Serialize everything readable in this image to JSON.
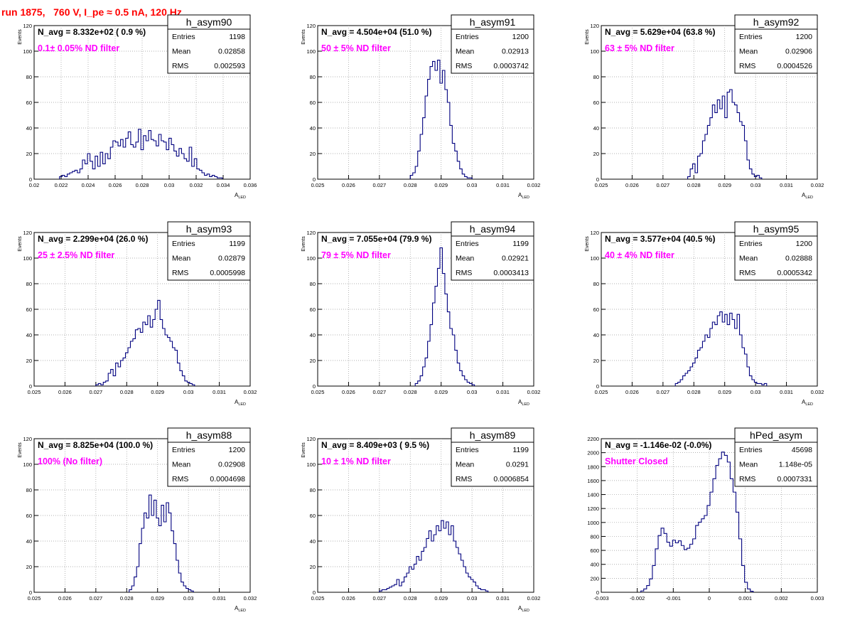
{
  "run_title": "run 1875,   760 V, I_pe ≈ 0.5 nA, 120 Hz",
  "colors": {
    "title": "#ff0000",
    "annotation": "#ff00ff",
    "histogram": "#00007f",
    "grid": "#999999"
  },
  "chart_data": [
    {
      "type": "histogram",
      "name": "h_asym90",
      "ylabel": "Events",
      "xlabel": "A_LED",
      "navg": "N_avg = 8.332e+02 ( 0.9 %)",
      "annotation": "0.1± 0.05% ND filter",
      "stats": {
        "Entries": "1198",
        "Mean": "0.02858",
        "RMS": "0.002593"
      },
      "xlim": [
        0.02,
        0.037
      ],
      "ylim": [
        0,
        120
      ],
      "xticks": [
        "0.02",
        "0.022",
        "0.024",
        "0.026",
        "0.028",
        "0.03",
        "0.032",
        "0.034",
        "0.036"
      ],
      "yticks": [
        "0",
        "20",
        "40",
        "60",
        "80",
        "100",
        "120"
      ],
      "x": [
        0.022,
        0.0222,
        0.0224,
        0.0226,
        0.0228,
        0.023,
        0.0232,
        0.0234,
        0.0236,
        0.0238,
        0.024,
        0.0242,
        0.0244,
        0.0246,
        0.0248,
        0.025,
        0.0252,
        0.0254,
        0.0256,
        0.0258,
        0.026,
        0.0262,
        0.0264,
        0.0266,
        0.0268,
        0.027,
        0.0272,
        0.0274,
        0.0276,
        0.0278,
        0.028,
        0.0282,
        0.0284,
        0.0286,
        0.0288,
        0.029,
        0.0292,
        0.0294,
        0.0296,
        0.0298,
        0.03,
        0.0302,
        0.0304,
        0.0306,
        0.0308,
        0.031,
        0.0312,
        0.0314,
        0.0316,
        0.0318,
        0.032,
        0.0322,
        0.0324,
        0.0326,
        0.0328,
        0.033,
        0.0332,
        0.0334,
        0.0336,
        0.0338,
        0.034,
        0.0342,
        0.0344,
        0.0346
      ],
      "values": [
        2,
        3,
        2,
        4,
        5,
        6,
        7,
        5,
        8,
        15,
        12,
        20,
        14,
        8,
        18,
        10,
        21,
        12,
        20,
        16,
        25,
        30,
        29,
        26,
        31,
        25,
        32,
        37,
        27,
        25,
        29,
        39,
        23,
        34,
        30,
        38,
        31,
        30,
        26,
        35,
        30,
        29,
        23,
        32,
        27,
        22,
        18,
        24,
        20,
        16,
        14,
        25,
        10,
        16,
        8,
        7,
        5,
        3,
        4,
        2,
        3,
        2,
        1,
        1
      ]
    },
    {
      "type": "histogram",
      "name": "h_asym91",
      "ylabel": "Events",
      "xlabel": "A_LED",
      "navg": "N_avg = 4.504e+04 (51.0 %)",
      "annotation": "50 ± 5% ND filter",
      "stats": {
        "Entries": "1200",
        "Mean": "0.02913",
        "RMS": "0.0003742"
      },
      "xlim": [
        0.025,
        0.032
      ],
      "ylim": [
        0,
        120
      ],
      "xticks": [
        "0.025",
        "0.026",
        "0.027",
        "0.028",
        "0.029",
        "0.03",
        "0.031",
        "0.032"
      ],
      "yticks": [
        "0",
        "20",
        "40",
        "60",
        "80",
        "100",
        "120"
      ],
      "x": [
        0.028,
        0.02808,
        0.02816,
        0.02824,
        0.02832,
        0.0284,
        0.02848,
        0.02856,
        0.02864,
        0.02872,
        0.0288,
        0.02888,
        0.02896,
        0.02904,
        0.02912,
        0.0292,
        0.02928,
        0.02936,
        0.02944,
        0.02952,
        0.0296,
        0.02968,
        0.02976,
        0.02984,
        0.02992
      ],
      "values": [
        3,
        5,
        10,
        22,
        35,
        48,
        65,
        78,
        88,
        92,
        85,
        93,
        75,
        85,
        70,
        60,
        42,
        28,
        22,
        14,
        8,
        4,
        2,
        1,
        1
      ]
    },
    {
      "type": "histogram",
      "name": "h_asym92",
      "ylabel": "Events",
      "xlabel": "A_LED",
      "navg": "N_avg = 5.629e+04 (63.8 %)",
      "annotation": "63 ± 5% ND filter",
      "stats": {
        "Entries": "1200",
        "Mean": "0.02906",
        "RMS": "0.0004526"
      },
      "xlim": [
        0.025,
        0.032
      ],
      "ylim": [
        0,
        120
      ],
      "xticks": [
        "0.025",
        "0.026",
        "0.027",
        "0.028",
        "0.029",
        "0.03",
        "0.031",
        "0.032"
      ],
      "yticks": [
        "0",
        "20",
        "40",
        "60",
        "80",
        "100",
        "120"
      ],
      "x": [
        0.0278,
        0.02788,
        0.02796,
        0.02804,
        0.02812,
        0.0282,
        0.02828,
        0.02836,
        0.02844,
        0.02852,
        0.0286,
        0.02868,
        0.02876,
        0.02884,
        0.02892,
        0.029,
        0.02908,
        0.02916,
        0.02924,
        0.02932,
        0.0294,
        0.02948,
        0.02956,
        0.02964,
        0.02972,
        0.0298,
        0.02988,
        0.02996,
        0.03004,
        0.03012
      ],
      "values": [
        2,
        8,
        12,
        5,
        18,
        20,
        30,
        35,
        42,
        48,
        58,
        52,
        62,
        55,
        65,
        48,
        68,
        70,
        60,
        58,
        52,
        45,
        42,
        30,
        15,
        8,
        4,
        2,
        3,
        1
      ]
    },
    {
      "type": "histogram",
      "name": "h_asym93",
      "ylabel": "Events",
      "xlabel": "A_LED",
      "navg": "N_avg = 2.299e+04 (26.0 %)",
      "annotation": "25 ± 2.5% ND filter",
      "stats": {
        "Entries": "1199",
        "Mean": "0.02879",
        "RMS": "0.0005998"
      },
      "xlim": [
        0.025,
        0.032
      ],
      "ylim": [
        0,
        120
      ],
      "xticks": [
        "0.025",
        "0.026",
        "0.027",
        "0.028",
        "0.029",
        "0.03",
        "0.031",
        "0.032"
      ],
      "yticks": [
        "0",
        "20",
        "40",
        "60",
        "80",
        "100",
        "120"
      ],
      "x": [
        0.027,
        0.02708,
        0.02716,
        0.02724,
        0.02732,
        0.0274,
        0.02748,
        0.02756,
        0.02764,
        0.02772,
        0.0278,
        0.02788,
        0.02796,
        0.02804,
        0.02812,
        0.0282,
        0.02828,
        0.02836,
        0.02844,
        0.02852,
        0.0286,
        0.02868,
        0.02876,
        0.02884,
        0.02892,
        0.029,
        0.02908,
        0.02916,
        0.02924,
        0.02932,
        0.0294,
        0.02948,
        0.02956,
        0.02964,
        0.02972,
        0.0298,
        0.02988,
        0.02996,
        0.03004,
        0.03012
      ],
      "values": [
        1,
        2,
        1,
        3,
        4,
        10,
        13,
        8,
        18,
        15,
        20,
        22,
        26,
        30,
        35,
        37,
        44,
        45,
        42,
        50,
        48,
        55,
        46,
        52,
        60,
        67,
        52,
        45,
        40,
        38,
        35,
        30,
        28,
        18,
        12,
        8,
        4,
        3,
        2,
        1
      ]
    },
    {
      "type": "histogram",
      "name": "h_asym94",
      "ylabel": "Events",
      "xlabel": "A_LED",
      "navg": "N_avg = 7.055e+04 (79.9 %)",
      "annotation": "79 ± 5% ND filter",
      "stats": {
        "Entries": "1199",
        "Mean": "0.02921",
        "RMS": "0.0003413"
      },
      "xlim": [
        0.025,
        0.032
      ],
      "ylim": [
        0,
        120
      ],
      "xticks": [
        "0.025",
        "0.026",
        "0.027",
        "0.028",
        "0.029",
        "0.03",
        "0.031",
        "0.032"
      ],
      "yticks": [
        "0",
        "20",
        "40",
        "60",
        "80",
        "100",
        "120"
      ],
      "x": [
        0.02816,
        0.02824,
        0.02832,
        0.0284,
        0.02848,
        0.02856,
        0.02864,
        0.02872,
        0.0288,
        0.02888,
        0.02896,
        0.02904,
        0.02912,
        0.0292,
        0.02928,
        0.02936,
        0.02944,
        0.02952,
        0.0296,
        0.02968,
        0.02976,
        0.02984,
        0.02992,
        0.03
      ],
      "values": [
        2,
        4,
        8,
        15,
        22,
        35,
        48,
        65,
        78,
        92,
        108,
        88,
        72,
        58,
        45,
        40,
        28,
        18,
        12,
        8,
        5,
        3,
        2,
        1
      ]
    },
    {
      "type": "histogram",
      "name": "h_asym95",
      "ylabel": "Events",
      "xlabel": "A_LED",
      "navg": "N_avg = 3.577e+04 (40.5 %)",
      "annotation": "40 ± 4% ND filter",
      "stats": {
        "Entries": "1200",
        "Mean": "0.02888",
        "RMS": "0.0005342"
      },
      "xlim": [
        0.025,
        0.032
      ],
      "ylim": [
        0,
        120
      ],
      "xticks": [
        "0.025",
        "0.026",
        "0.027",
        "0.028",
        "0.029",
        "0.03",
        "0.031",
        "0.032"
      ],
      "yticks": [
        "0",
        "20",
        "40",
        "60",
        "80",
        "100",
        "120"
      ],
      "x": [
        0.0274,
        0.02748,
        0.02756,
        0.02764,
        0.02772,
        0.0278,
        0.02788,
        0.02796,
        0.02804,
        0.02812,
        0.0282,
        0.02828,
        0.02836,
        0.02844,
        0.02852,
        0.0286,
        0.02868,
        0.02876,
        0.02884,
        0.02892,
        0.029,
        0.02908,
        0.02916,
        0.02924,
        0.02932,
        0.0294,
        0.02948,
        0.02956,
        0.02964,
        0.02972,
        0.0298,
        0.02988,
        0.02996,
        0.03004,
        0.03012,
        0.0302,
        0.03028
      ],
      "values": [
        2,
        3,
        5,
        8,
        10,
        12,
        15,
        18,
        22,
        28,
        30,
        35,
        40,
        38,
        45,
        50,
        48,
        55,
        58,
        50,
        56,
        48,
        57,
        52,
        45,
        56,
        40,
        30,
        25,
        15,
        8,
        5,
        3,
        2,
        2,
        1,
        2
      ]
    },
    {
      "type": "histogram",
      "name": "h_asym88",
      "ylabel": "Events",
      "xlabel": "A_LED",
      "navg": "N_avg = 8.825e+04 (100.0 %)",
      "annotation": "100% (No filter)",
      "stats": {
        "Entries": "1200",
        "Mean": "0.02908",
        "RMS": "0.0004698"
      },
      "xlim": [
        0.025,
        0.032
      ],
      "ylim": [
        0,
        120
      ],
      "xticks": [
        "0.025",
        "0.026",
        "0.027",
        "0.028",
        "0.029",
        "0.03",
        "0.031",
        "0.032"
      ],
      "yticks": [
        "0",
        "20",
        "40",
        "60",
        "80",
        "100",
        "120"
      ],
      "x": [
        0.02808,
        0.02816,
        0.02824,
        0.02832,
        0.0284,
        0.02848,
        0.02856,
        0.02864,
        0.02872,
        0.0288,
        0.02888,
        0.02896,
        0.02904,
        0.02912,
        0.0292,
        0.02928,
        0.02936,
        0.02944,
        0.02952,
        0.0296,
        0.02968,
        0.02976,
        0.02984,
        0.02992,
        0.03,
        0.03008
      ],
      "values": [
        2,
        5,
        12,
        20,
        38,
        50,
        62,
        58,
        76,
        60,
        72,
        58,
        52,
        68,
        55,
        70,
        62,
        48,
        38,
        25,
        15,
        8,
        5,
        3,
        2,
        1
      ]
    },
    {
      "type": "histogram",
      "name": "h_asym89",
      "ylabel": "Events",
      "xlabel": "A_LED",
      "navg": "N_avg = 8.409e+03 ( 9.5 %)",
      "annotation": "10 ± 1% ND filter",
      "stats": {
        "Entries": "1199",
        "Mean": "0.0291",
        "RMS": "0.0006854"
      },
      "xlim": [
        0.025,
        0.032
      ],
      "ylim": [
        0,
        120
      ],
      "xticks": [
        "0.025",
        "0.026",
        "0.027",
        "0.028",
        "0.029",
        "0.03",
        "0.031",
        "0.032"
      ],
      "yticks": [
        "0",
        "20",
        "40",
        "60",
        "80",
        "100",
        "120"
      ],
      "x": [
        0.027,
        0.02708,
        0.02716,
        0.02724,
        0.02732,
        0.0274,
        0.02748,
        0.02756,
        0.02764,
        0.02772,
        0.0278,
        0.02788,
        0.02796,
        0.02804,
        0.02812,
        0.0282,
        0.02828,
        0.02836,
        0.02844,
        0.02852,
        0.0286,
        0.02868,
        0.02876,
        0.02884,
        0.02892,
        0.029,
        0.02908,
        0.02916,
        0.02924,
        0.02932,
        0.0294,
        0.02948,
        0.02956,
        0.02964,
        0.02972,
        0.0298,
        0.02988,
        0.02996,
        0.03004,
        0.03012,
        0.0302,
        0.03028,
        0.03036,
        0.03044
      ],
      "values": [
        1,
        2,
        2,
        3,
        4,
        5,
        6,
        10,
        5,
        8,
        12,
        15,
        20,
        18,
        22,
        28,
        25,
        32,
        35,
        42,
        48,
        40,
        45,
        52,
        48,
        56,
        50,
        55,
        45,
        52,
        40,
        35,
        30,
        25,
        20,
        15,
        12,
        10,
        8,
        5,
        3,
        2,
        2,
        1
      ]
    },
    {
      "type": "histogram",
      "name": "hPed_asym",
      "ylabel": "",
      "xlabel": "",
      "navg": "N_avg = -1.146e-02 (-0.0%)",
      "annotation": "Shutter Closed",
      "stats": {
        "Entries": "45698",
        "Mean": "1.148e-05",
        "RMS": "0.0007331"
      },
      "xlim": [
        -0.003,
        0.003
      ],
      "ylim": [
        0,
        2300
      ],
      "xticks": [
        "-0.003",
        "-0.002",
        "-0.001",
        "0",
        "0.001",
        "0.002",
        "0.003"
      ],
      "yticks": [
        "0",
        "200",
        "400",
        "600",
        "800",
        "1000",
        "1200",
        "1400",
        "1600",
        "1800",
        "2000",
        "2200"
      ],
      "x": [
        -0.0019,
        -0.00182,
        -0.00174,
        -0.00166,
        -0.00158,
        -0.0015,
        -0.00142,
        -0.00134,
        -0.00126,
        -0.00118,
        -0.0011,
        -0.00102,
        -0.00094,
        -0.00086,
        -0.00078,
        -0.0007,
        -0.00062,
        -0.00054,
        -0.00046,
        -0.00038,
        -0.0003,
        -0.00022,
        -0.00014,
        -6e-05,
        2e-05,
        0.0001,
        0.00018,
        0.00026,
        0.00034,
        0.00042,
        0.0005,
        0.00058,
        0.00066,
        0.00074,
        0.00082,
        0.0009,
        0.00098,
        0.00106,
        0.00114
      ],
      "values": [
        20,
        50,
        100,
        200,
        400,
        650,
        850,
        960,
        880,
        750,
        690,
        780,
        740,
        770,
        700,
        640,
        660,
        720,
        800,
        1000,
        1050,
        1100,
        1150,
        1300,
        1500,
        1700,
        1900,
        2000,
        2100,
        2050,
        1950,
        1700,
        1500,
        1200,
        800,
        400,
        150,
        50,
        15
      ]
    }
  ]
}
